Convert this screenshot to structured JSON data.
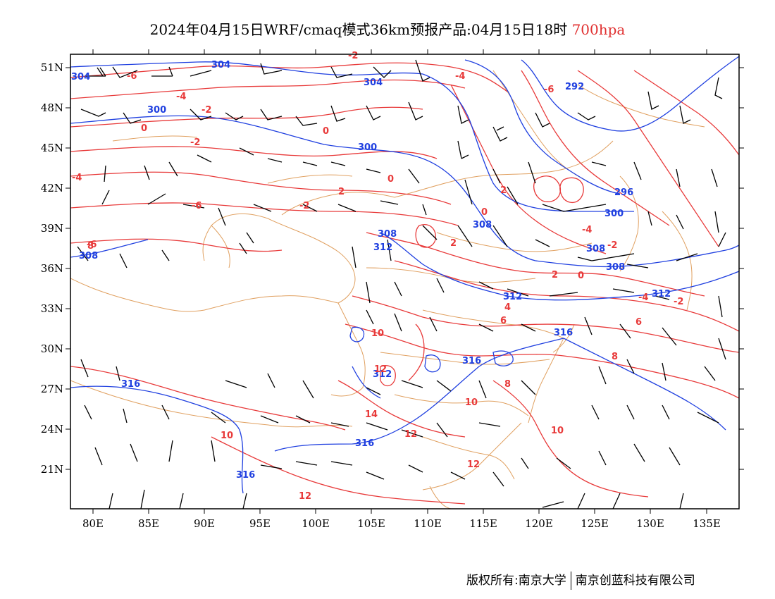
{
  "header": {
    "title": "2024年04月15日WRF/cmaq模式36km预报产品:04月15日18时",
    "level": "700hpa"
  },
  "map": {
    "lat_labels": [
      "51N",
      "48N",
      "45N",
      "42N",
      "39N",
      "36N",
      "33N",
      "30N",
      "27N",
      "24N",
      "21N"
    ],
    "lon_labels": [
      "80E",
      "85E",
      "90E",
      "95E",
      "100E",
      "105E",
      "110E",
      "115E",
      "120E",
      "125E",
      "130E",
      "135E"
    ],
    "height_contour_labels": [
      "304",
      "304",
      "304",
      "300",
      "300",
      "308",
      "296",
      "292",
      "308",
      "300",
      "308",
      "308",
      "312",
      "312",
      "312",
      "316",
      "316",
      "316",
      "316",
      "312",
      "308",
      "316"
    ],
    "temperature_contour_labels": [
      "-2",
      "-4",
      "-6",
      "-6",
      "-4",
      "-2",
      "0",
      "-2",
      "0",
      "2",
      "0",
      "-4",
      "2",
      "-6",
      "-2",
      "-4",
      "0",
      "-2",
      "2",
      "-6",
      "0",
      "2",
      "-4",
      "-2",
      "4",
      "6",
      "6",
      "8",
      "10",
      "12",
      "8",
      "10",
      "14",
      "12",
      "10",
      "12",
      "10",
      "12",
      "8"
    ],
    "colors": {
      "height_contour": "#2040e0",
      "temperature_contour": "#e83a3a",
      "boundary": "#e0a060",
      "wind_barb": "#000000"
    }
  },
  "footer": {
    "copyright": "版权所有:南京大学",
    "company": "南京创蓝科技有限公司"
  }
}
